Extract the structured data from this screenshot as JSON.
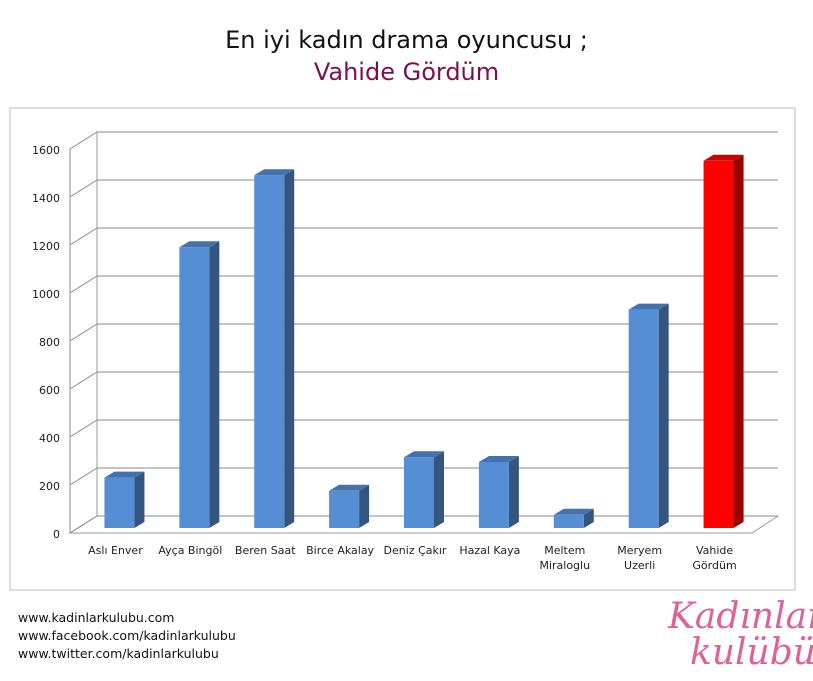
{
  "chart_data": {
    "type": "bar3d",
    "title": "En iyi kadın drama oyuncusu ;",
    "subtitle": "Vahide Gördüm",
    "categories": [
      "Aslı Enver",
      "Ayça Bingöl",
      "Beren Saat",
      "Birce Akalay",
      "Deniz Çakır",
      "Hazal Kaya",
      "Meltem Miraloglu",
      "Meryem Uzerli",
      "Vahide Gördüm"
    ],
    "values": [
      210,
      1170,
      1470,
      155,
      295,
      275,
      55,
      910,
      1530
    ],
    "colors": [
      "#558ed5",
      "#558ed5",
      "#558ed5",
      "#558ed5",
      "#558ed5",
      "#558ed5",
      "#558ed5",
      "#558ed5",
      "#ff0000"
    ],
    "ylim": [
      0,
      1600
    ],
    "yticks": [
      0,
      200,
      400,
      600,
      800,
      1000,
      1200,
      1400,
      1600
    ],
    "grid": true
  },
  "footer": {
    "links": [
      "www.kadinlarkulubu.com",
      "www.facebook.com/kadinlarkulubu",
      "www.twitter.com/kadinlarkulubu"
    ],
    "logo": [
      "Kadınlar",
      "kulübü"
    ]
  }
}
